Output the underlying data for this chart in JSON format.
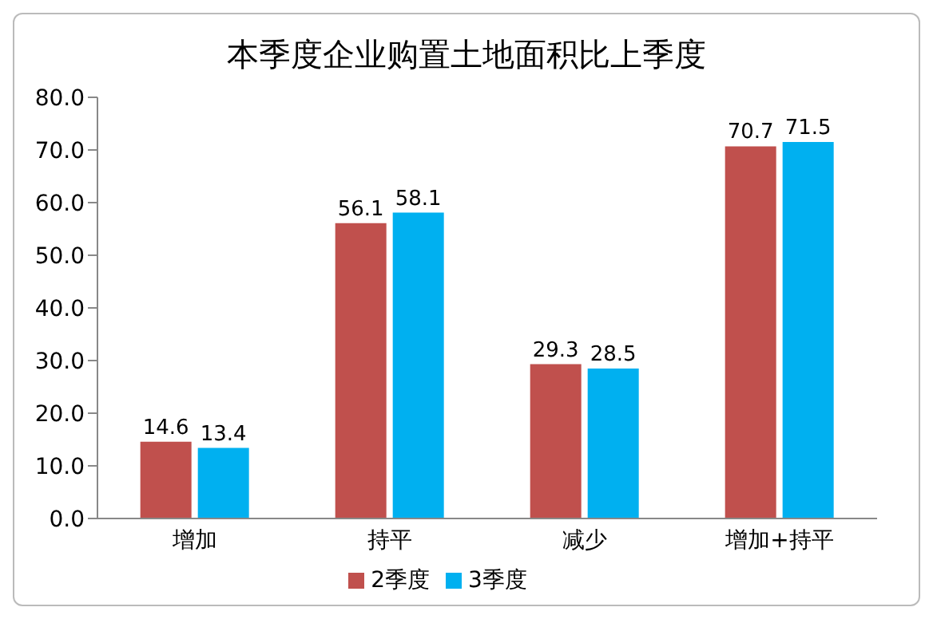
{
  "chart_data": {
    "type": "bar",
    "title": "本季度企业购置土地面积比上季度",
    "categories": [
      "增加",
      "持平",
      "减少",
      "增加+持平"
    ],
    "series": [
      {
        "name": "2季度",
        "color": "#c0504d",
        "values": [
          14.6,
          56.1,
          29.3,
          70.7
        ]
      },
      {
        "name": "3季度",
        "color": "#00b0f0",
        "values": [
          13.4,
          58.1,
          28.5,
          71.5
        ]
      }
    ],
    "ylim": [
      0,
      80
    ],
    "yticks": [
      {
        "value": 0,
        "label": "0.0"
      },
      {
        "value": 10,
        "label": "10.0"
      },
      {
        "value": 20,
        "label": "20.0"
      },
      {
        "value": 30,
        "label": "30.0"
      },
      {
        "value": 40,
        "label": "40.0"
      },
      {
        "value": 50,
        "label": "50.0"
      },
      {
        "value": 60,
        "label": "60.0"
      },
      {
        "value": 70,
        "label": "70.0"
      },
      {
        "value": 80,
        "label": "80.0"
      }
    ],
    "data_labels": true,
    "grid": false,
    "legend": "bottom"
  }
}
